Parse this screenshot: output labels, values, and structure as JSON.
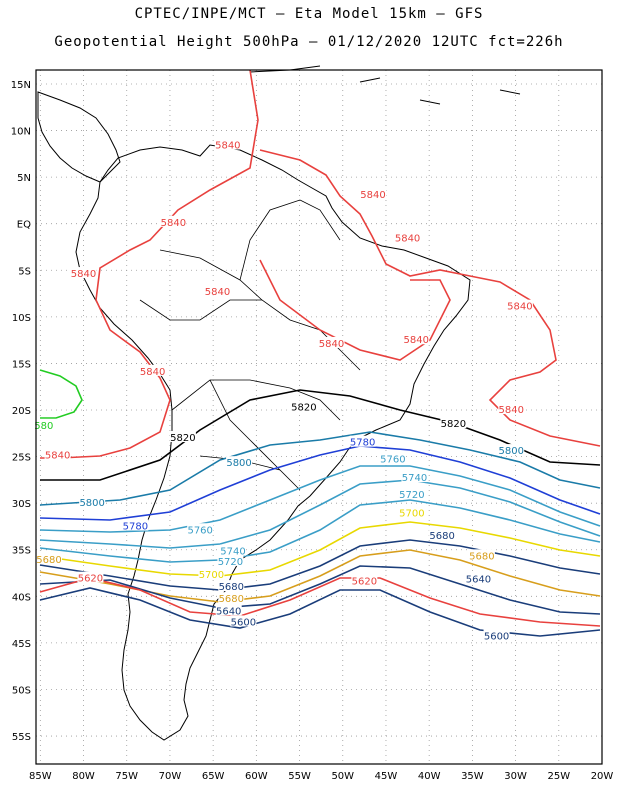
{
  "header": {
    "line1": "CPTEC/INPE/MCT –  Eta Model 15km – GFS",
    "line2": "Geopotential Height 500hPa – 01/12/2020 12UTC fct=226h"
  },
  "map": {
    "lat_labels": [
      "15N",
      "10N",
      "5N",
      "EQ",
      "5S",
      "10S",
      "15S",
      "20S",
      "25S",
      "30S",
      "35S",
      "40S",
      "45S",
      "50S",
      "55S"
    ],
    "lon_labels": [
      "85W",
      "80W",
      "75W",
      "70W",
      "65W",
      "60W",
      "55W",
      "50W",
      "45W",
      "40W",
      "35W",
      "30W",
      "25W",
      "20W"
    ],
    "lat_range": [
      -58,
      16.5
    ],
    "lon_range": [
      -85.5,
      -20
    ]
  },
  "contour_labels": [
    {
      "text": "5840",
      "color": "#e8413e",
      "lon": -63.3,
      "lat": 8.5
    },
    {
      "text": "5840",
      "color": "#e8413e",
      "lon": -46.5,
      "lat": 3.2
    },
    {
      "text": "5840",
      "color": "#e8413e",
      "lon": -69.6,
      "lat": 0.2
    },
    {
      "text": "5840",
      "color": "#e8413e",
      "lon": -42.5,
      "lat": -1.5
    },
    {
      "text": "5840",
      "color": "#e8413e",
      "lon": -80,
      "lat": -5.3
    },
    {
      "text": "5840",
      "color": "#e8413e",
      "lon": -64.5,
      "lat": -7.2
    },
    {
      "text": "5840",
      "color": "#e8413e",
      "lon": -29.5,
      "lat": -8.8
    },
    {
      "text": "5840",
      "color": "#e8413e",
      "lon": -51.3,
      "lat": -12.8
    },
    {
      "text": "5840",
      "color": "#e8413e",
      "lon": -41.5,
      "lat": -12.4
    },
    {
      "text": "5840",
      "color": "#e8413e",
      "lon": -72,
      "lat": -15.8
    },
    {
      "text": "5840",
      "color": "#e8413e",
      "lon": -30.5,
      "lat": -19.9
    },
    {
      "text": "5840",
      "color": "#e8413e",
      "lon": -83,
      "lat": -24.8
    },
    {
      "text": "5820",
      "color": "#000000",
      "lon": -54.5,
      "lat": -19.6
    },
    {
      "text": "5820",
      "color": "#000000",
      "lon": -68.5,
      "lat": -22.9
    },
    {
      "text": "5820",
      "color": "#000000",
      "lon": -37.2,
      "lat": -21.4
    },
    {
      "text": "5800",
      "color": "#1a7ba8",
      "lon": -62,
      "lat": -25.6
    },
    {
      "text": "5800",
      "color": "#1a7ba8",
      "lon": -30.5,
      "lat": -24.3
    },
    {
      "text": "5800",
      "color": "#1a7ba8",
      "lon": -79,
      "lat": -29.9
    },
    {
      "text": "5780",
      "color": "#1f3fd6",
      "lon": -47.7,
      "lat": -23.4
    },
    {
      "text": "5780",
      "color": "#1f3fd6",
      "lon": -74,
      "lat": -32.4
    },
    {
      "text": "5760",
      "color": "#3a9ec7",
      "lon": -44.2,
      "lat": -25.2
    },
    {
      "text": "5760",
      "color": "#3a9ec7",
      "lon": -66.5,
      "lat": -32.8
    },
    {
      "text": "5740",
      "color": "#3a9ec7",
      "lon": -41.7,
      "lat": -27.2
    },
    {
      "text": "5740",
      "color": "#3a9ec7",
      "lon": -62.7,
      "lat": -35.1
    },
    {
      "text": "5720",
      "color": "#3a9ec7",
      "lon": -42,
      "lat": -29.0
    },
    {
      "text": "5720",
      "color": "#3a9ec7",
      "lon": -63,
      "lat": -36.2
    },
    {
      "text": "5700",
      "color": "#e8d800",
      "lon": -42,
      "lat": -31.0
    },
    {
      "text": "5700",
      "color": "#e8d800",
      "lon": -65.2,
      "lat": -37.6
    },
    {
      "text": "5680",
      "color": "#1a3d7a",
      "lon": -38.5,
      "lat": -33.4
    },
    {
      "text": "5680",
      "color": "#1a3d7a",
      "lon": -62.9,
      "lat": -38.9
    },
    {
      "text": "5680",
      "color": "#d79e1c",
      "lon": -33.9,
      "lat": -35.6
    },
    {
      "text": "5680",
      "color": "#d79e1c",
      "lon": -84,
      "lat": -36.0
    },
    {
      "text": "5680",
      "color": "#d79e1c",
      "lon": -62.9,
      "lat": -40.2
    },
    {
      "text": "5620",
      "color": "#e8413e",
      "lon": -47.5,
      "lat": -38.3
    },
    {
      "text": "5620",
      "color": "#e8413e",
      "lon": -79.2,
      "lat": -38.0
    },
    {
      "text": "5640",
      "color": "#1a3d7a",
      "lon": -34.3,
      "lat": -38.1
    },
    {
      "text": "5640",
      "color": "#1a3d7a",
      "lon": -63.2,
      "lat": -41.5
    },
    {
      "text": "5600",
      "color": "#1a3d7a",
      "lon": -61.5,
      "lat": -42.7
    },
    {
      "text": "5600",
      "color": "#1a3d7a",
      "lon": -32.2,
      "lat": -44.2
    },
    {
      "text": "580",
      "color": "#22cc22",
      "lon": -84.6,
      "lat": -21.6
    }
  ]
}
